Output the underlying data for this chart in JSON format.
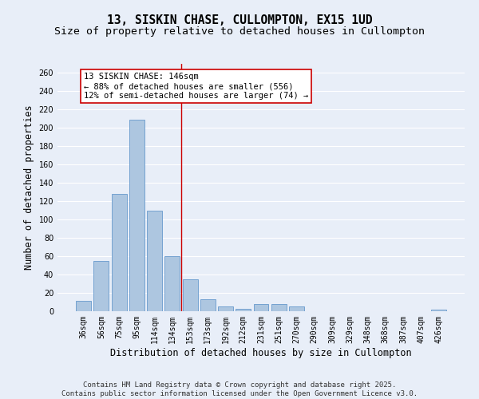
{
  "title_line1": "13, SISKIN CHASE, CULLOMPTON, EX15 1UD",
  "title_line2": "Size of property relative to detached houses in Cullompton",
  "xlabel": "Distribution of detached houses by size in Cullompton",
  "ylabel": "Number of detached properties",
  "categories": [
    "36sqm",
    "56sqm",
    "75sqm",
    "95sqm",
    "114sqm",
    "134sqm",
    "153sqm",
    "173sqm",
    "192sqm",
    "212sqm",
    "231sqm",
    "251sqm",
    "270sqm",
    "290sqm",
    "309sqm",
    "329sqm",
    "348sqm",
    "368sqm",
    "387sqm",
    "407sqm",
    "426sqm"
  ],
  "values": [
    11,
    55,
    128,
    209,
    110,
    60,
    35,
    13,
    5,
    3,
    8,
    8,
    5,
    0,
    0,
    0,
    0,
    0,
    0,
    0,
    2
  ],
  "bar_color": "#adc6e0",
  "bar_edge_color": "#6699cc",
  "bg_color": "#e8eef8",
  "grid_color": "#ffffff",
  "vline_x": 5.5,
  "vline_color": "#cc0000",
  "annotation_text": "13 SISKIN CHASE: 146sqm\n← 88% of detached houses are smaller (556)\n12% of semi-detached houses are larger (74) →",
  "annotation_box_color": "#ffffff",
  "annotation_box_edge": "#cc0000",
  "ylim": [
    0,
    270
  ],
  "yticks": [
    0,
    20,
    40,
    60,
    80,
    100,
    120,
    140,
    160,
    180,
    200,
    220,
    240,
    260
  ],
  "footnote": "Contains HM Land Registry data © Crown copyright and database right 2025.\nContains public sector information licensed under the Open Government Licence v3.0.",
  "title_fontsize": 10.5,
  "subtitle_fontsize": 9.5,
  "axis_label_fontsize": 8.5,
  "tick_fontsize": 7,
  "annot_fontsize": 7.5,
  "footnote_fontsize": 6.5
}
